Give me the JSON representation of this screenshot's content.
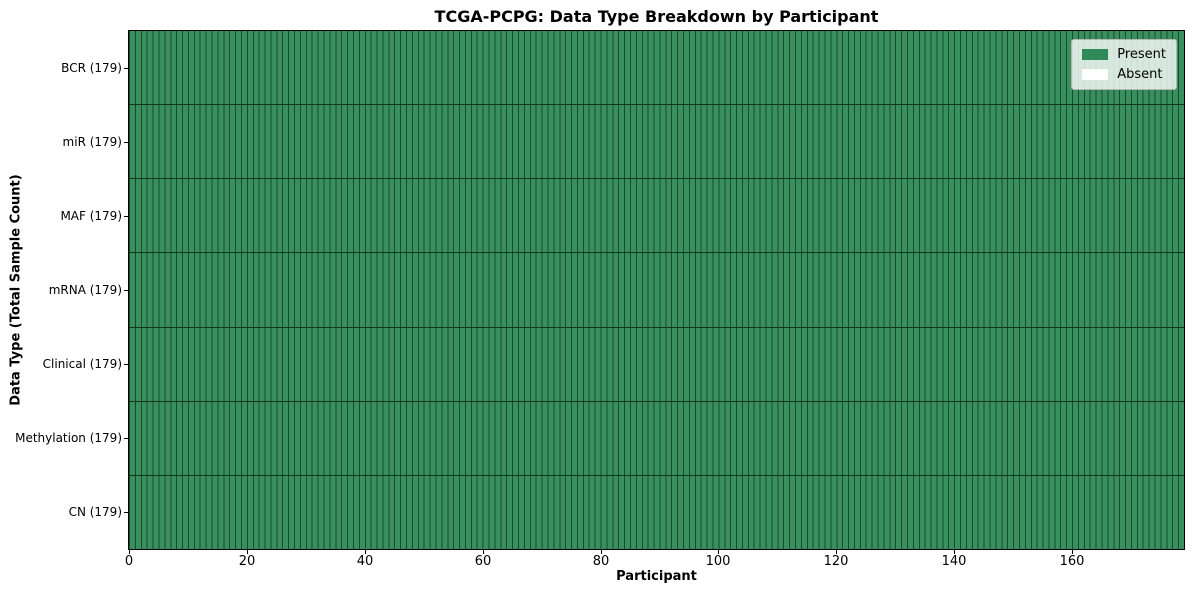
{
  "title": "TCGA-PCPG: Data Type Breakdown by Participant",
  "chart_data": {
    "type": "heatmap",
    "title": "TCGA-PCPG: Data Type Breakdown by Participant",
    "xlabel": "Participant",
    "ylabel": "Data Type (Total Sample Count)",
    "xlim": [
      0,
      179
    ],
    "x_ticks": [
      0,
      20,
      40,
      60,
      80,
      100,
      120,
      140,
      160
    ],
    "participants": 179,
    "rows": [
      {
        "label": "BCR (179)",
        "data_type": "BCR",
        "total_samples": 179,
        "present": 179,
        "absent": 0
      },
      {
        "label": "miR (179)",
        "data_type": "miR",
        "total_samples": 179,
        "present": 179,
        "absent": 0
      },
      {
        "label": "MAF (179)",
        "data_type": "MAF",
        "total_samples": 179,
        "present": 179,
        "absent": 0
      },
      {
        "label": "mRNA (179)",
        "data_type": "mRNA",
        "total_samples": 179,
        "present": 179,
        "absent": 0
      },
      {
        "label": "Clinical (179)",
        "data_type": "Clinical",
        "total_samples": 179,
        "present": 179,
        "absent": 0
      },
      {
        "label": "Methylation (179)",
        "data_type": "Methylation",
        "total_samples": 179,
        "present": 179,
        "absent": 0
      },
      {
        "label": "CN (179)",
        "data_type": "CN",
        "total_samples": 179,
        "present": 179,
        "absent": 0
      }
    ],
    "legend": {
      "position": "upper-right-inset",
      "items": [
        {
          "label": "Present",
          "color": "#2e8b57"
        },
        {
          "label": "Absent",
          "color": "#ffffff"
        }
      ]
    },
    "colors": {
      "cell_fill": "#38905f",
      "cell_edge": "#1d4830",
      "row_separator": "#16351f",
      "axes_border": "#000000",
      "background": "#ffffff",
      "text": "#000000"
    },
    "grid": false
  }
}
